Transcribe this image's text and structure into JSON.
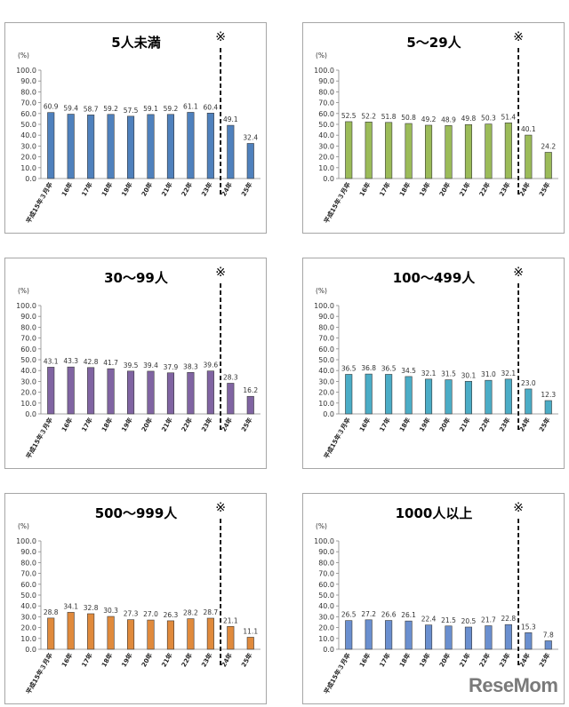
{
  "chart_data": [
    {
      "type": "bar",
      "title": "5人未満",
      "color": "#4f81bd",
      "unit_label": "(%)",
      "marker": "※",
      "ylim": [
        0,
        100
      ],
      "yticks": [
        "0.0",
        "10.0",
        "20.0",
        "30.0",
        "40.0",
        "50.0",
        "60.0",
        "70.0",
        "80.0",
        "90.0",
        "100.0"
      ],
      "categories": [
        "平成15年３月卒",
        "16年",
        "17年",
        "18年",
        "19年",
        "20年",
        "21年",
        "22年",
        "23年",
        "24年",
        "25年"
      ],
      "values": [
        60.9,
        59.4,
        58.7,
        59.2,
        57.5,
        59.1,
        59.2,
        61.1,
        60.4,
        49.1,
        32.4
      ],
      "value_labels": [
        "60.9",
        "59.4",
        "58.7",
        "59.2",
        "57.5",
        "59.1",
        "59.2",
        "61.1",
        "60.4",
        "49.1",
        "32.4"
      ]
    },
    {
      "type": "bar",
      "title": "5～29人",
      "color": "#9bbb59",
      "unit_label": "(%)",
      "marker": "※",
      "ylim": [
        0,
        100
      ],
      "yticks": [
        "0.0",
        "10.0",
        "20.0",
        "30.0",
        "40.0",
        "50.0",
        "60.0",
        "70.0",
        "80.0",
        "90.0",
        "100.0"
      ],
      "categories": [
        "平成15年３月卒",
        "16年",
        "17年",
        "18年",
        "19年",
        "20年",
        "21年",
        "22年",
        "23年",
        "24年",
        "25年"
      ],
      "values": [
        52.5,
        52.2,
        51.8,
        50.8,
        49.2,
        48.9,
        49.8,
        50.3,
        51.4,
        40.1,
        24.2
      ],
      "value_labels": [
        "52.5",
        "52.2",
        "51.8",
        "50.8",
        "49.2",
        "48.9",
        "49.8",
        "50.3",
        "51.4",
        "40.1",
        "24.2"
      ]
    },
    {
      "type": "bar",
      "title": "30～99人",
      "color": "#8064a2",
      "unit_label": "(%)",
      "marker": "※",
      "ylim": [
        0,
        100
      ],
      "yticks": [
        "0.0",
        "10.0",
        "20.0",
        "30.0",
        "40.0",
        "50.0",
        "60.0",
        "70.0",
        "80.0",
        "90.0",
        "100.0"
      ],
      "categories": [
        "平成15年３月卒",
        "16年",
        "17年",
        "18年",
        "19年",
        "20年",
        "21年",
        "22年",
        "23年",
        "24年",
        "25年"
      ],
      "values": [
        43.1,
        43.3,
        42.8,
        41.7,
        39.5,
        39.4,
        37.9,
        38.3,
        39.6,
        28.3,
        16.2
      ],
      "value_labels": [
        "43.1",
        "43.3",
        "42.8",
        "41.7",
        "39.5",
        "39.4",
        "37.9",
        "38.3",
        "39.6",
        "28.3",
        "16.2"
      ]
    },
    {
      "type": "bar",
      "title": "100～499人",
      "color": "#4bacc6",
      "unit_label": "(%)",
      "marker": "※",
      "ylim": [
        0,
        100
      ],
      "yticks": [
        "0.0",
        "10.0",
        "20.0",
        "30.0",
        "40.0",
        "50.0",
        "60.0",
        "70.0",
        "80.0",
        "90.0",
        "100.0"
      ],
      "categories": [
        "平成15年３月卒",
        "16年",
        "17年",
        "18年",
        "19年",
        "20年",
        "21年",
        "22年",
        "23年",
        "24年",
        "25年"
      ],
      "values": [
        36.5,
        36.8,
        36.5,
        34.5,
        32.1,
        31.5,
        30.1,
        31.0,
        32.1,
        23.0,
        12.3
      ],
      "value_labels": [
        "36.5",
        "36.8",
        "36.5",
        "34.5",
        "32.1",
        "31.5",
        "30.1",
        "31.0",
        "32.1",
        "23.0",
        "12.3"
      ]
    },
    {
      "type": "bar",
      "title": "500～999人",
      "color": "#e08a3c",
      "unit_label": "(%)",
      "marker": "※",
      "ylim": [
        0,
        100
      ],
      "yticks": [
        "0.0",
        "10.0",
        "20.0",
        "30.0",
        "40.0",
        "50.0",
        "60.0",
        "70.0",
        "80.0",
        "90.0",
        "100.0"
      ],
      "categories": [
        "平成15年３月卒",
        "16年",
        "17年",
        "18年",
        "19年",
        "20年",
        "21年",
        "22年",
        "23年",
        "24年",
        "25年"
      ],
      "values": [
        28.8,
        34.1,
        32.8,
        30.3,
        27.3,
        27.0,
        26.3,
        28.2,
        28.7,
        21.1,
        11.1
      ],
      "value_labels": [
        "28.8",
        "34.1",
        "32.8",
        "30.3",
        "27.3",
        "27.0",
        "26.3",
        "28.2",
        "28.7",
        "21.1",
        "11.1"
      ]
    },
    {
      "type": "bar",
      "title": "1000人以上",
      "color": "#6a8fcf",
      "unit_label": "(%)",
      "marker": "※",
      "ylim": [
        0,
        100
      ],
      "yticks": [
        "0.0",
        "10.0",
        "20.0",
        "30.0",
        "40.0",
        "50.0",
        "60.0",
        "70.0",
        "80.0",
        "90.0",
        "100.0"
      ],
      "categories": [
        "平成15年３月卒",
        "16年",
        "17年",
        "18年",
        "19年",
        "20年",
        "21年",
        "22年",
        "23年",
        "24年",
        "25年"
      ],
      "values": [
        26.5,
        27.2,
        26.6,
        26.1,
        22.4,
        21.5,
        20.5,
        21.7,
        22.8,
        15.3,
        7.8
      ],
      "value_labels": [
        "26.5",
        "27.2",
        "26.6",
        "26.1",
        "22.4",
        "21.5",
        "20.5",
        "21.7",
        "22.8",
        "15.3",
        "7.8"
      ]
    }
  ],
  "watermark": "ReseMom"
}
